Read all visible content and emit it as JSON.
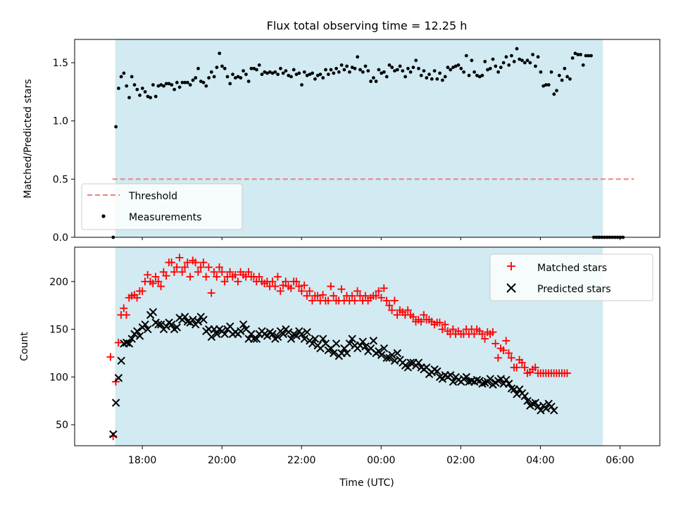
{
  "figure": {
    "title": "Flux total observing time = 12.25 h",
    "xlabel": "Time (UTC)",
    "xticks": [
      {
        "h": 18,
        "label": "18:00"
      },
      {
        "h": 20,
        "label": "20:00"
      },
      {
        "h": 22,
        "label": "22:00"
      },
      {
        "h": 24,
        "label": "00:00"
      },
      {
        "h": 26,
        "label": "02:00"
      },
      {
        "h": 28,
        "label": "04:00"
      },
      {
        "h": 30,
        "label": "06:00"
      }
    ],
    "shaded_span": [
      17.32,
      29.57
    ],
    "colors": {
      "shade": "#add8e6",
      "threshold": "#f08080",
      "matched": "#ff0000",
      "predicted": "#000000",
      "measurements": "#000000"
    }
  },
  "chart_data": [
    {
      "type": "scatter",
      "title": "",
      "xlabel": "",
      "ylabel": "Matched/Predicted stars",
      "xlim": [
        16.3,
        31.0
      ],
      "ylim": [
        0.0,
        1.7
      ],
      "yticks": [
        {
          "v": 0.0,
          "label": "0.0"
        },
        {
          "v": 0.5,
          "label": "0.5"
        },
        {
          "v": 1.0,
          "label": "1.0"
        },
        {
          "v": 1.5,
          "label": "1.5"
        }
      ],
      "legend_position": "lower-left",
      "legend": [
        {
          "label": "Threshold",
          "marker": "dashed-line"
        },
        {
          "label": "Measurements",
          "marker": "dot"
        }
      ],
      "threshold": {
        "name": "Threshold",
        "value": 0.5,
        "x_range": [
          17.25,
          30.35
        ]
      },
      "series": [
        {
          "name": "Measurements",
          "marker": "dot",
          "x_start": 17.27,
          "x_step": 0.0667,
          "y": [
            0.0,
            0.95,
            1.28,
            1.38,
            1.41,
            1.3,
            1.2,
            1.38,
            1.31,
            1.27,
            1.22,
            1.28,
            1.25,
            1.21,
            1.2,
            1.31,
            1.21,
            1.3,
            1.31,
            1.3,
            1.32,
            1.32,
            1.31,
            1.27,
            1.33,
            1.29,
            1.33,
            1.33,
            1.33,
            1.31,
            1.35,
            1.37,
            1.45,
            1.34,
            1.33,
            1.3,
            1.37,
            1.42,
            1.38,
            1.46,
            1.58,
            1.47,
            1.45,
            1.38,
            1.32,
            1.4,
            1.37,
            1.38,
            1.37,
            1.43,
            1.4,
            1.34,
            1.45,
            1.45,
            1.44,
            1.48,
            1.4,
            1.42,
            1.41,
            1.42,
            1.41,
            1.42,
            1.4,
            1.45,
            1.41,
            1.43,
            1.39,
            1.38,
            1.44,
            1.4,
            1.41,
            1.31,
            1.42,
            1.39,
            1.4,
            1.41,
            1.36,
            1.39,
            1.4,
            1.37,
            1.44,
            1.4,
            1.44,
            1.41,
            1.45,
            1.42,
            1.48,
            1.44,
            1.47,
            1.42,
            1.46,
            1.45,
            1.55,
            1.44,
            1.42,
            1.47,
            1.43,
            1.34,
            1.37,
            1.34,
            1.44,
            1.41,
            1.42,
            1.38,
            1.48,
            1.46,
            1.43,
            1.44,
            1.47,
            1.43,
            1.38,
            1.45,
            1.42,
            1.46,
            1.52,
            1.45,
            1.39,
            1.43,
            1.37,
            1.4,
            1.36,
            1.43,
            1.36,
            1.41,
            1.35,
            1.38,
            1.46,
            1.44,
            1.46,
            1.47,
            1.48,
            1.45,
            1.42,
            1.56,
            1.39,
            1.52,
            1.42,
            1.39,
            1.38,
            1.39,
            1.51,
            1.44,
            1.45,
            1.53,
            1.47,
            1.42,
            1.46,
            1.5,
            1.55,
            1.48,
            1.56,
            1.51,
            1.62,
            1.53,
            1.52,
            1.5,
            1.52,
            1.5,
            1.57,
            1.47,
            1.55,
            1.42,
            1.3,
            1.31,
            1.31,
            1.42,
            1.23,
            1.26,
            1.39,
            1.35,
            1.45,
            1.38,
            1.36,
            1.54,
            1.58,
            1.57,
            1.57,
            1.48,
            1.56,
            1.56,
            1.56,
            0.0,
            0.0,
            0.0,
            0.0,
            0.0,
            0.0,
            0.0,
            0.0,
            0.0,
            0.0,
            0.0,
            0.0
          ]
        }
      ]
    },
    {
      "type": "scatter",
      "title": "",
      "xlabel": "Time (UTC)",
      "ylabel": "Count",
      "xlim": [
        16.3,
        31.0
      ],
      "ylim": [
        28,
        236
      ],
      "yticks": [
        {
          "v": 50,
          "label": "50"
        },
        {
          "v": 100,
          "label": "100"
        },
        {
          "v": 150,
          "label": "150"
        },
        {
          "v": 200,
          "label": "200"
        }
      ],
      "legend_position": "top-right",
      "legend": [
        {
          "label": "Matched stars",
          "marker": "plus"
        },
        {
          "label": "Predicted stars",
          "marker": "x"
        }
      ],
      "series": [
        {
          "name": "Matched stars",
          "marker": "plus",
          "x_start": 17.2,
          "x_step": 0.0667,
          "y": [
            121,
            38,
            95,
            136,
            165,
            172,
            165,
            183,
            185,
            186,
            183,
            190,
            190,
            200,
            207,
            200,
            198,
            205,
            200,
            195,
            210,
            206,
            220,
            220,
            210,
            215,
            225,
            210,
            215,
            220,
            205,
            222,
            220,
            210,
            215,
            220,
            205,
            215,
            188,
            210,
            205,
            215,
            210,
            200,
            205,
            210,
            205,
            207,
            200,
            210,
            207,
            205,
            210,
            205,
            205,
            200,
            205,
            200,
            198,
            200,
            195,
            200,
            195,
            205,
            190,
            196,
            200,
            195,
            193,
            200,
            200,
            195,
            190,
            196,
            185,
            190,
            180,
            185,
            185,
            180,
            186,
            180,
            180,
            195,
            185,
            180,
            180,
            192,
            180,
            185,
            180,
            185,
            180,
            190,
            185,
            180,
            185,
            180,
            183,
            185,
            185,
            190,
            183,
            193,
            180,
            175,
            170,
            180,
            165,
            170,
            168,
            165,
            170,
            165,
            163,
            158,
            160,
            158,
            165,
            160,
            160,
            158,
            155,
            157,
            157,
            150,
            155,
            148,
            145,
            150,
            145,
            148,
            145,
            145,
            150,
            145,
            150,
            145,
            150,
            148,
            145,
            140,
            147,
            145,
            147,
            135,
            120,
            130,
            128,
            138,
            125,
            120,
            110,
            110,
            118,
            115,
            110,
            104,
            105,
            108,
            110,
            104,
            104,
            104,
            104,
            104,
            104,
            104,
            104,
            104,
            104,
            104,
            104
          ]
        },
        {
          "name": "Predicted stars",
          "marker": "x",
          "x_start": 17.27,
          "x_step": 0.0667,
          "y": [
            40,
            73,
            99,
            117,
            135,
            136,
            135,
            140,
            145,
            148,
            143,
            152,
            155,
            150,
            165,
            168,
            157,
            155,
            155,
            150,
            153,
            157,
            155,
            150,
            152,
            162,
            160,
            163,
            158,
            157,
            160,
            155,
            158,
            163,
            160,
            148,
            150,
            142,
            150,
            145,
            150,
            148,
            145,
            150,
            153,
            145,
            147,
            145,
            148,
            155,
            150,
            140,
            145,
            140,
            140,
            145,
            148,
            145,
            143,
            147,
            145,
            140,
            142,
            148,
            145,
            150,
            147,
            140,
            145,
            143,
            148,
            145,
            140,
            147,
            138,
            135,
            140,
            133,
            130,
            140,
            135,
            128,
            130,
            125,
            135,
            122,
            125,
            130,
            125,
            135,
            140,
            133,
            130,
            133,
            137,
            132,
            127,
            130,
            138,
            125,
            127,
            123,
            130,
            120,
            120,
            123,
            117,
            125,
            118,
            115,
            112,
            110,
            115,
            115,
            112,
            115,
            110,
            108,
            110,
            103,
            105,
            108,
            106,
            100,
            98,
            102,
            100,
            102,
            95,
            100,
            97,
            95,
            98,
            100,
            95,
            96,
            95,
            97,
            96,
            93,
            94,
            95,
            98,
            92,
            94,
            96,
            98,
            93,
            97,
            93,
            88,
            87,
            82,
            87,
            83,
            80,
            75,
            70,
            72,
            73,
            69,
            65,
            70,
            67,
            72,
            69,
            65
          ]
        }
      ]
    }
  ]
}
